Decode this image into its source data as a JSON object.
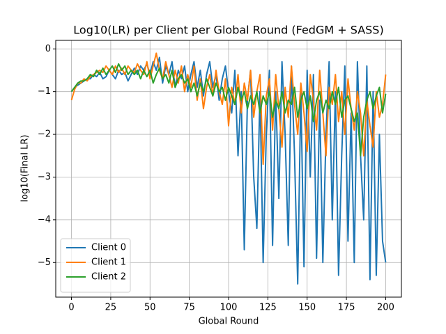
{
  "chart_data": {
    "type": "line",
    "title": "Log10(LR) per Client per Global Round (FedGM + SASS)",
    "x_label": "Global Round",
    "y_label": "log10(Final LR)",
    "x": [
      0,
      2,
      4,
      6,
      8,
      10,
      12,
      14,
      16,
      18,
      20,
      22,
      24,
      26,
      28,
      30,
      32,
      34,
      36,
      38,
      40,
      42,
      44,
      46,
      48,
      50,
      52,
      54,
      56,
      58,
      60,
      62,
      64,
      66,
      68,
      70,
      72,
      74,
      76,
      78,
      80,
      82,
      84,
      86,
      88,
      90,
      92,
      94,
      96,
      98,
      100,
      102,
      104,
      106,
      108,
      110,
      112,
      114,
      116,
      118,
      120,
      122,
      124,
      126,
      128,
      130,
      132,
      134,
      136,
      138,
      140,
      142,
      144,
      146,
      148,
      150,
      152,
      154,
      156,
      158,
      160,
      162,
      164,
      166,
      168,
      170,
      172,
      174,
      176,
      178,
      180,
      182,
      184,
      186,
      188,
      190,
      192,
      194,
      196,
      198,
      200
    ],
    "series": [
      {
        "name": "Client 0",
        "color": "#1f77b4",
        "values": [
          -1.0,
          -0.9,
          -0.85,
          -0.8,
          -0.75,
          -0.7,
          -0.7,
          -0.6,
          -0.65,
          -0.55,
          -0.7,
          -0.65,
          -0.5,
          -0.6,
          -0.7,
          -0.5,
          -0.6,
          -0.55,
          -0.75,
          -0.6,
          -0.45,
          -0.6,
          -0.4,
          -0.5,
          -0.35,
          -0.6,
          -0.3,
          -0.5,
          -0.2,
          -0.8,
          -0.4,
          -0.6,
          -0.3,
          -0.9,
          -0.5,
          -0.7,
          -0.4,
          -1.0,
          -0.6,
          -0.3,
          -0.9,
          -0.5,
          -1.1,
          -0.6,
          -0.3,
          -0.9,
          -0.6,
          -1.2,
          -0.7,
          -0.4,
          -1.0,
          -1.5,
          -0.5,
          -2.5,
          -1.0,
          -4.7,
          -1.2,
          -0.5,
          -3.0,
          -4.2,
          -1.0,
          -5.0,
          -2.0,
          -0.5,
          -4.6,
          -1.0,
          -3.5,
          -0.3,
          -2.0,
          -4.6,
          -0.4,
          -2.5,
          -5.5,
          -1.0,
          -5.1,
          -0.5,
          -3.0,
          -0.6,
          -4.9,
          -1.2,
          -5.0,
          -2.0,
          -0.3,
          -4.0,
          -1.0,
          -5.3,
          -2.5,
          -0.4,
          -4.5,
          -1.5,
          -5.0,
          -0.3,
          -2.5,
          -4.0,
          -0.4,
          -5.4,
          -1.0,
          -5.3,
          -2.0,
          -4.5,
          -5.0
        ]
      },
      {
        "name": "Client 1",
        "color": "#ff7f0e",
        "values": [
          -1.2,
          -0.95,
          -0.8,
          -0.8,
          -0.7,
          -0.75,
          -0.65,
          -0.6,
          -0.55,
          -0.5,
          -0.55,
          -0.4,
          -0.5,
          -0.6,
          -0.4,
          -0.55,
          -0.45,
          -0.6,
          -0.4,
          -0.5,
          -0.55,
          -0.35,
          -0.5,
          -0.6,
          -0.3,
          -0.7,
          -0.4,
          -0.1,
          -0.5,
          -0.7,
          -0.3,
          -0.6,
          -0.9,
          -0.5,
          -0.8,
          -0.4,
          -1.0,
          -0.6,
          -0.9,
          -0.4,
          -1.2,
          -0.7,
          -1.4,
          -0.9,
          -0.6,
          -1.1,
          -0.5,
          -1.0,
          -1.3,
          -0.7,
          -1.8,
          -0.9,
          -1.3,
          -0.6,
          -1.5,
          -0.8,
          -1.2,
          -0.5,
          -1.6,
          -1.0,
          -0.6,
          -2.7,
          -1.1,
          -0.7,
          -1.9,
          -0.6,
          -1.4,
          -2.3,
          -0.9,
          -1.6,
          -0.4,
          -1.3,
          -2.0,
          -0.8,
          -1.5,
          -2.4,
          -0.6,
          -1.2,
          -1.9,
          -0.5,
          -1.5,
          -2.5,
          -0.9,
          -1.3,
          -0.6,
          -1.7,
          -1.0,
          -2.0,
          -0.7,
          -1.4,
          -1.9,
          -1.0,
          -1.5,
          -2.5,
          -1.2,
          -1.8,
          -2.3,
          -1.0,
          -1.6,
          -1.3,
          -0.6
        ]
      },
      {
        "name": "Client 2",
        "color": "#2ca02c",
        "values": [
          -1.0,
          -0.9,
          -0.8,
          -0.75,
          -0.75,
          -0.7,
          -0.6,
          -0.65,
          -0.5,
          -0.6,
          -0.45,
          -0.6,
          -0.5,
          -0.4,
          -0.55,
          -0.35,
          -0.5,
          -0.4,
          -0.6,
          -0.5,
          -0.6,
          -0.5,
          -0.7,
          -0.5,
          -0.65,
          -0.5,
          -0.8,
          -0.6,
          -0.45,
          -0.7,
          -0.6,
          -0.8,
          -0.5,
          -0.9,
          -0.7,
          -0.6,
          -0.8,
          -0.7,
          -1.0,
          -0.8,
          -1.1,
          -0.8,
          -1.0,
          -0.7,
          -0.9,
          -1.1,
          -0.8,
          -1.0,
          -0.9,
          -1.2,
          -0.9,
          -1.1,
          -1.3,
          -0.9,
          -1.2,
          -1.0,
          -1.4,
          -1.1,
          -1.3,
          -1.0,
          -1.5,
          -1.1,
          -1.3,
          -1.0,
          -1.6,
          -1.2,
          -1.4,
          -1.0,
          -1.5,
          -1.2,
          -1.3,
          -0.9,
          -1.6,
          -1.2,
          -1.0,
          -1.4,
          -1.1,
          -1.7,
          -1.2,
          -1.0,
          -1.5,
          -1.2,
          -1.4,
          -1.0,
          -1.3,
          -0.9,
          -1.6,
          -1.2,
          -1.1,
          -1.4,
          -1.7,
          -1.5,
          -2.5,
          -1.6,
          -1.2,
          -1.0,
          -1.4,
          -1.1,
          -0.9,
          -1.5,
          -1.05
        ]
      }
    ],
    "xlim": [
      -10,
      210
    ],
    "ylim": [
      -5.81,
      0.2
    ],
    "xticks": [
      0,
      25,
      50,
      75,
      100,
      125,
      150,
      175,
      200
    ],
    "yticks": [
      0,
      {
        "value": -1,
        "label": "−1"
      },
      {
        "value": -2,
        "label": "−2"
      },
      {
        "value": -3,
        "label": "−3"
      },
      {
        "value": -4,
        "label": "−4"
      },
      {
        "value": -5,
        "label": "−5"
      }
    ],
    "grid": true,
    "legend_position": "lower left"
  }
}
